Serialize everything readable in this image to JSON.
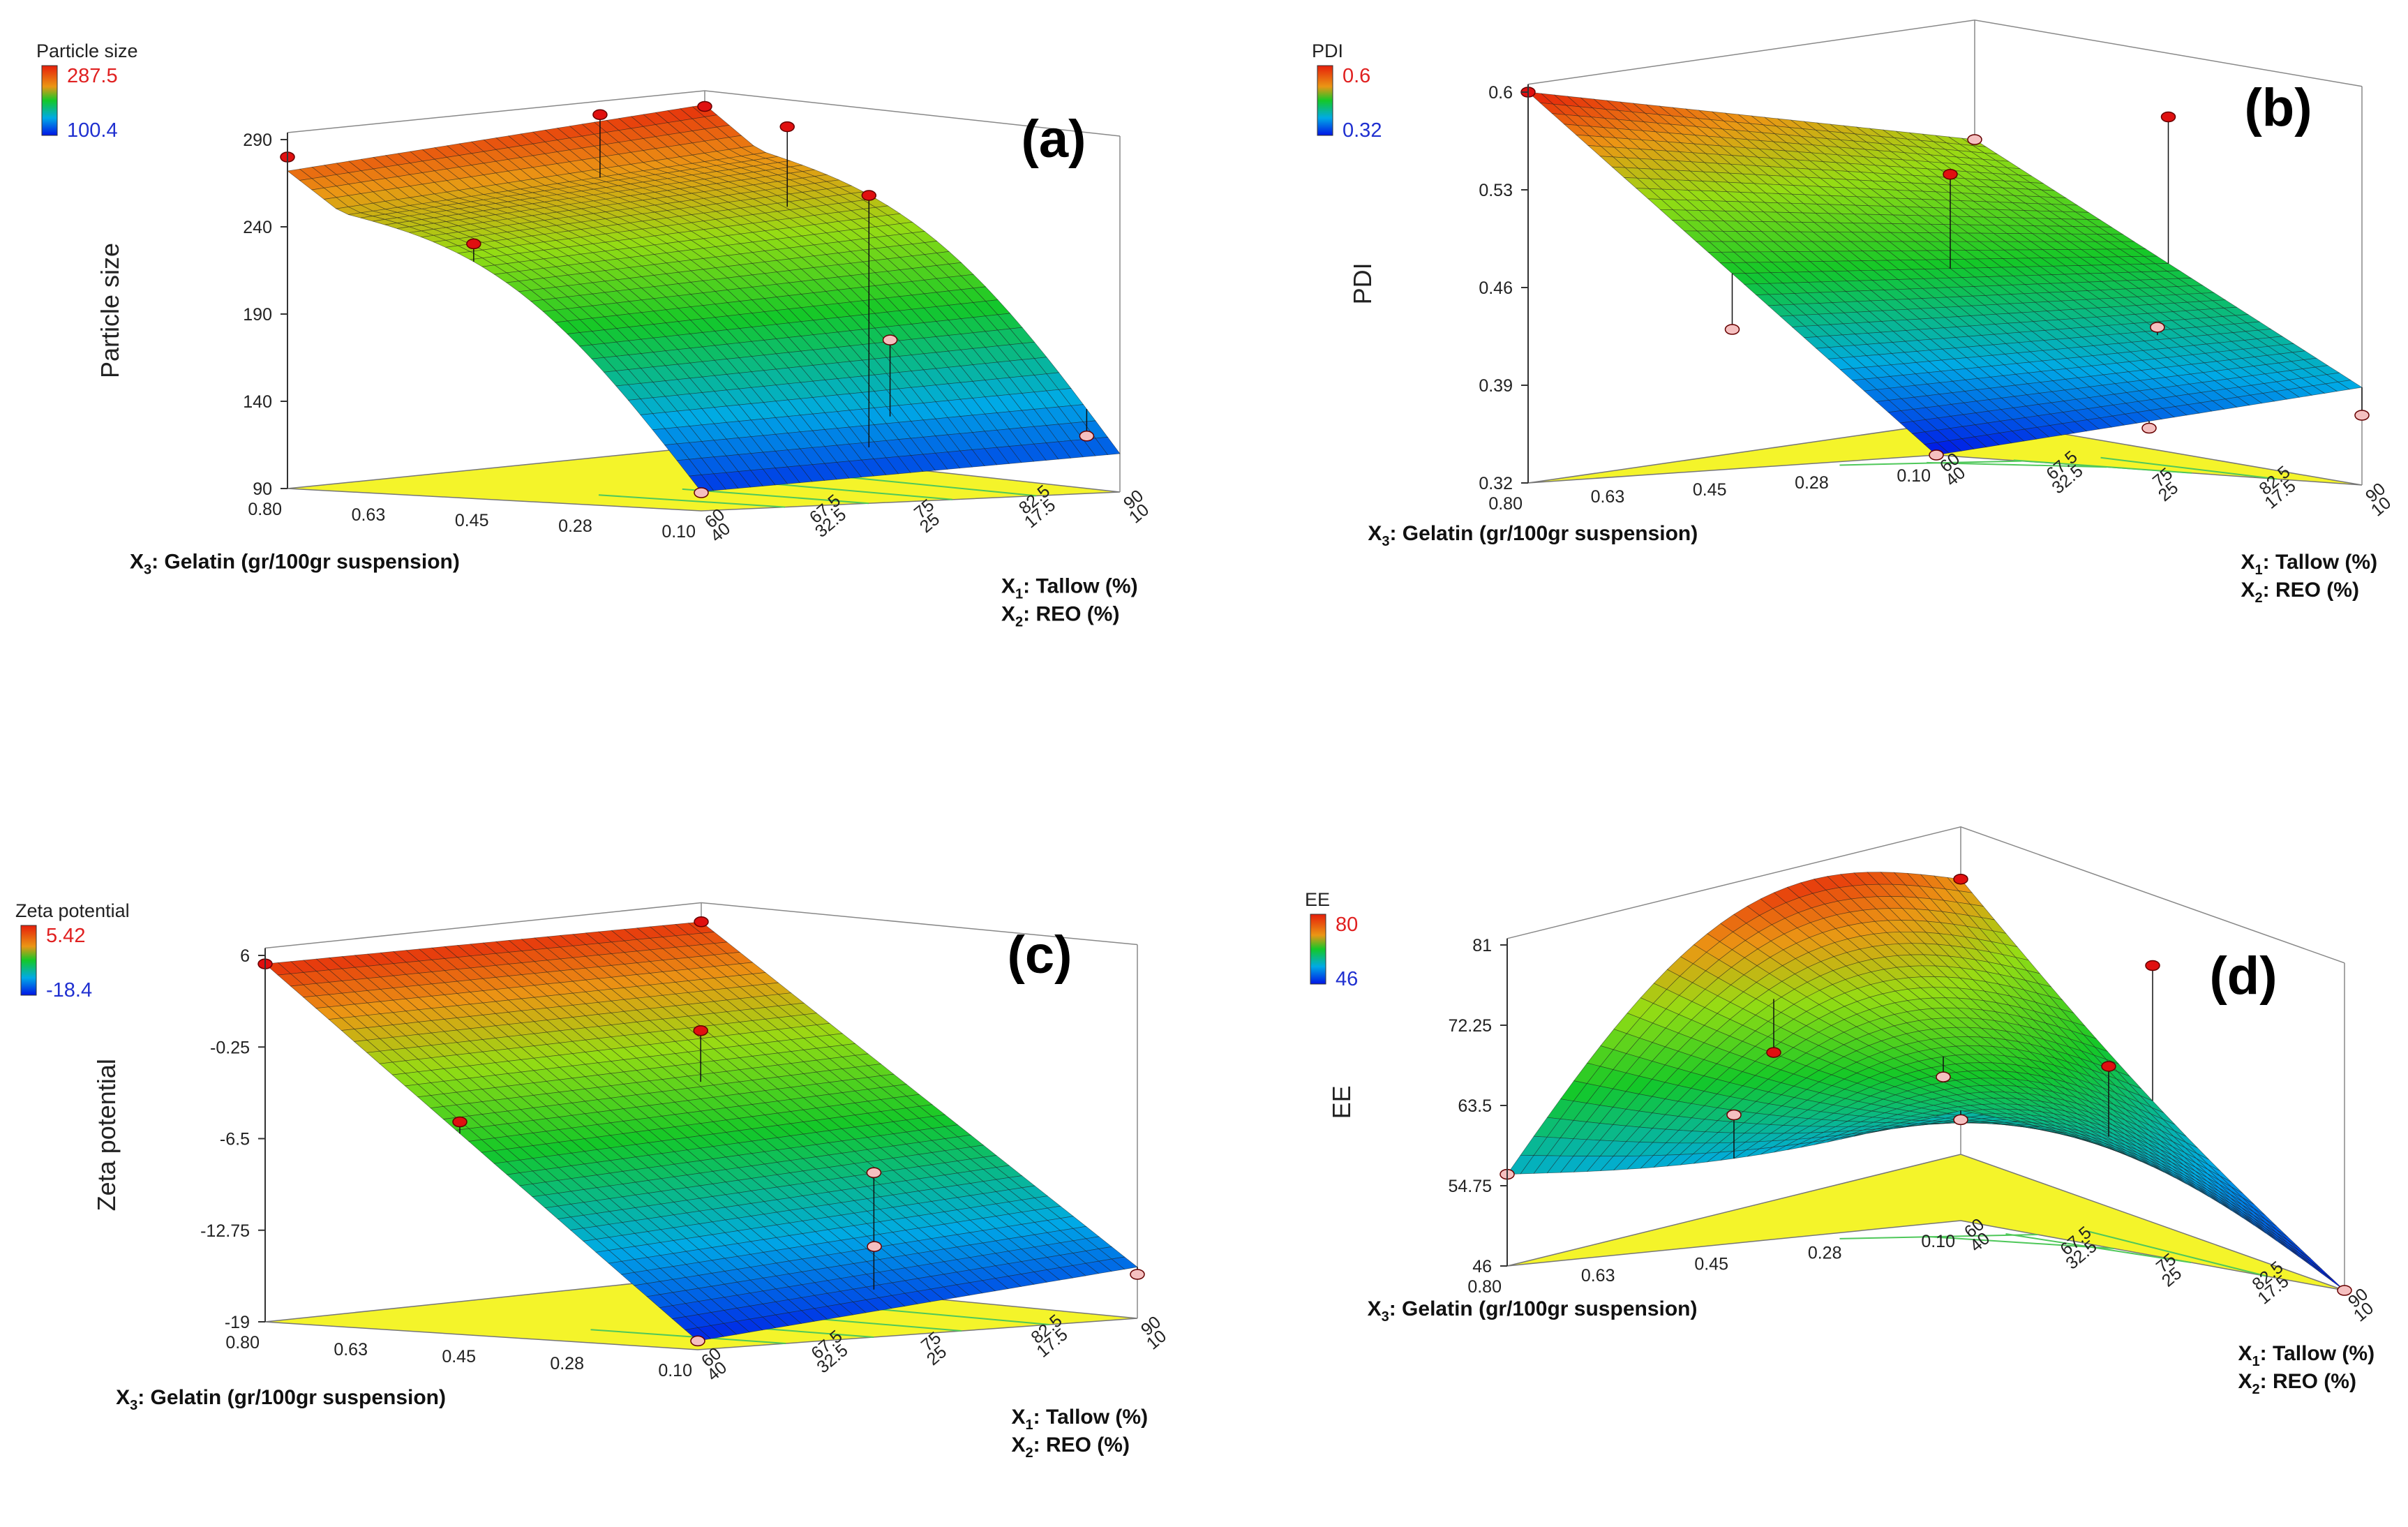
{
  "chart_data": [
    {
      "id": "a",
      "type": "surface3d",
      "panel_label": "(a)",
      "zlabel": "Particle size",
      "legend": {
        "title": "Particle size",
        "max": "287.5",
        "min": "100.4"
      },
      "zticks": [
        "90",
        "140",
        "190",
        "240",
        "290"
      ],
      "zlim": [
        90,
        290
      ],
      "x3_label": "X3: Gelatin (gr/100gr suspension)",
      "x3_label_parts": [
        "X",
        "3",
        ": Gelatin (gr/100gr suspension)"
      ],
      "x3_ticks": [
        "0.10",
        "0.28",
        "0.45",
        "0.63",
        "0.80"
      ],
      "x1_label_parts": [
        "X",
        "1",
        ": Tallow (%)"
      ],
      "x2_label_parts": [
        "X",
        "2",
        ": REO (%)"
      ],
      "x1_ticks": [
        "60",
        "67.5",
        "75",
        "82.5",
        "90"
      ],
      "x2_ticks": [
        "40",
        "32.5",
        "25",
        "17.5",
        "10"
      ],
      "corner_values": {
        "gelatin_high_x1_low": 282,
        "gelatin_high_x1_high": 296,
        "gelatin_low_x1_low": 101,
        "gelatin_low_x1_high": 112
      },
      "design_points": [
        {
          "u": 0.0,
          "v": 0.0,
          "z": 100.4,
          "above": false
        },
        {
          "u": 0.0,
          "v": 0.55,
          "z": 236,
          "above": true
        },
        {
          "u": 0.8,
          "v": 0.6,
          "z": 287.5,
          "above": true
        },
        {
          "u": 0.6,
          "v": 0.85,
          "z": 293,
          "above": true
        },
        {
          "u": 1.0,
          "v": 1.0,
          "z": 285,
          "above": true
        },
        {
          "u": 0.0,
          "v": 1.0,
          "z": 280,
          "above": true
        },
        {
          "u": 0.45,
          "v": 0.05,
          "z": 265,
          "above": true
        },
        {
          "u": 1.0,
          "v": 0.08,
          "z": 120,
          "above": false
        },
        {
          "u": 0.55,
          "v": 0.1,
          "z": 180,
          "above": false
        }
      ]
    },
    {
      "id": "b",
      "type": "surface3d",
      "panel_label": "(b)",
      "zlabel": "PDI",
      "legend": {
        "title": "PDI",
        "max": "0.6",
        "min": "0.32"
      },
      "zticks": [
        "0.32",
        "0.39",
        "0.46",
        "0.53",
        "0.6"
      ],
      "zlim": [
        0.32,
        0.6
      ],
      "x3_label": "X3: Gelatin (gr/100gr suspension)",
      "x3_label_parts": [
        "X",
        "3",
        ": Gelatin (gr/100gr suspension)"
      ],
      "x3_ticks": [
        "0.10",
        "0.28",
        "0.45",
        "0.63",
        "0.80"
      ],
      "x1_label_parts": [
        "X",
        "1",
        ": Tallow (%)"
      ],
      "x2_label_parts": [
        "X",
        "2",
        ": REO (%)"
      ],
      "x1_ticks": [
        "60",
        "67.5",
        "75",
        "82.5",
        "90"
      ],
      "x2_ticks": [
        "40",
        "32.5",
        "25",
        "17.5",
        "10"
      ],
      "corner_values": {
        "gelatin_high_x1_low": 0.6,
        "gelatin_high_x1_high": 0.52,
        "gelatin_low_x1_low": 0.32,
        "gelatin_low_x1_high": 0.39
      },
      "design_points": [
        {
          "u": 0.0,
          "v": 0.0,
          "z": 0.32,
          "above": false
        },
        {
          "u": 0.0,
          "v": 0.5,
          "z": 0.42,
          "above": false
        },
        {
          "u": 0.0,
          "v": 1.0,
          "z": 0.6,
          "above": true
        },
        {
          "u": 0.5,
          "v": 0.5,
          "z": 0.525,
          "above": true
        },
        {
          "u": 0.5,
          "v": 0.0,
          "z": 0.35,
          "above": false
        },
        {
          "u": 1.0,
          "v": 0.0,
          "z": 0.37,
          "above": false
        },
        {
          "u": 1.0,
          "v": 0.5,
          "z": 0.56,
          "above": true
        },
        {
          "u": 1.0,
          "v": 1.0,
          "z": 0.52,
          "above": false
        },
        {
          "u": 0.75,
          "v": 0.25,
          "z": 0.42,
          "above": false
        }
      ]
    },
    {
      "id": "c",
      "type": "surface3d",
      "panel_label": "(c)",
      "zlabel": "Zeta potential",
      "legend": {
        "title": "Zeta potential",
        "max": "5.42",
        "min": "-18.4"
      },
      "zticks": [
        "-19",
        "-12.75",
        "-6.5",
        "-0.25",
        "6"
      ],
      "zlim": [
        -19,
        6
      ],
      "x3_label": "X3: Gelatin (gr/100gr suspension)",
      "x3_label_parts": [
        "X",
        "3",
        ": Gelatin (gr/100gr suspension)"
      ],
      "x3_ticks": [
        "0.10",
        "0.28",
        "0.45",
        "0.63",
        "0.80"
      ],
      "x1_label_parts": [
        "X",
        "1",
        ": Tallow (%)"
      ],
      "x2_label_parts": [
        "X",
        "2",
        ": REO (%)"
      ],
      "x1_ticks": [
        "60",
        "67.5",
        "75",
        "82.5",
        "90"
      ],
      "x2_ticks": [
        "40",
        "32.5",
        "25",
        "17.5",
        "10"
      ],
      "corner_values": {
        "gelatin_high_x1_low": 5.42,
        "gelatin_high_x1_high": 5.2,
        "gelatin_low_x1_low": -18.4,
        "gelatin_low_x1_high": -15.5
      },
      "design_points": [
        {
          "u": 0.0,
          "v": 0.0,
          "z": -18.4,
          "above": false
        },
        {
          "u": 0.0,
          "v": 0.55,
          "z": -4.5,
          "above": true
        },
        {
          "u": 0.0,
          "v": 1.0,
          "z": 5.42,
          "above": true
        },
        {
          "u": 0.6,
          "v": 0.6,
          "z": 0.0,
          "above": true
        },
        {
          "u": 1.0,
          "v": 1.0,
          "z": 5.2,
          "above": true
        },
        {
          "u": 0.45,
          "v": 0.05,
          "z": -8.0,
          "above": false
        },
        {
          "u": 1.0,
          "v": 0.0,
          "z": -16.0,
          "above": false
        },
        {
          "u": 0.55,
          "v": 0.15,
          "z": -13.5,
          "above": false
        }
      ]
    },
    {
      "id": "d",
      "type": "surface3d",
      "panel_label": "(d)",
      "zlabel": "EE",
      "legend": {
        "title": "EE",
        "max": "80",
        "min": "46"
      },
      "zticks": [
        "46",
        "54.75",
        "63.5",
        "72.25",
        "81"
      ],
      "zlim": [
        46,
        81
      ],
      "x3_label": "X3: Gelatin (gr/100gr suspension)",
      "x3_label_parts": [
        "X",
        "3",
        ": Gelatin (gr/100gr suspension)"
      ],
      "x3_ticks": [
        "0.10",
        "0.28",
        "0.45",
        "0.63",
        "0.80"
      ],
      "x1_label_parts": [
        "X",
        "1",
        ": Tallow (%)"
      ],
      "x2_label_parts": [
        "X",
        "2",
        ": REO (%)"
      ],
      "x1_ticks": [
        "60",
        "67.5",
        "75",
        "82.5",
        "90"
      ],
      "x2_ticks": [
        "40",
        "32.5",
        "25",
        "17.5",
        "10"
      ],
      "corner_values": {
        "gelatin_high_x1_low": 56,
        "gelatin_high_x1_high": 76,
        "gelatin_low_x1_low": 58,
        "gelatin_low_x1_high": 46
      },
      "design_points": [
        {
          "u": 0.0,
          "v": 0.0,
          "z": 57,
          "above": false
        },
        {
          "u": 0.0,
          "v": 0.5,
          "z": 60,
          "above": false
        },
        {
          "u": 0.0,
          "v": 1.0,
          "z": 56,
          "above": false
        },
        {
          "u": 0.5,
          "v": 0.5,
          "z": 63,
          "above": false
        },
        {
          "u": 1.0,
          "v": 1.0,
          "z": 76,
          "above": true
        },
        {
          "u": 1.0,
          "v": 0.5,
          "z": 74,
          "above": true
        },
        {
          "u": 1.0,
          "v": 0.0,
          "z": 46,
          "above": false
        },
        {
          "u": 0.6,
          "v": 0.2,
          "z": 66,
          "above": true
        },
        {
          "u": 0.4,
          "v": 0.8,
          "z": 65,
          "above": true
        }
      ]
    }
  ]
}
